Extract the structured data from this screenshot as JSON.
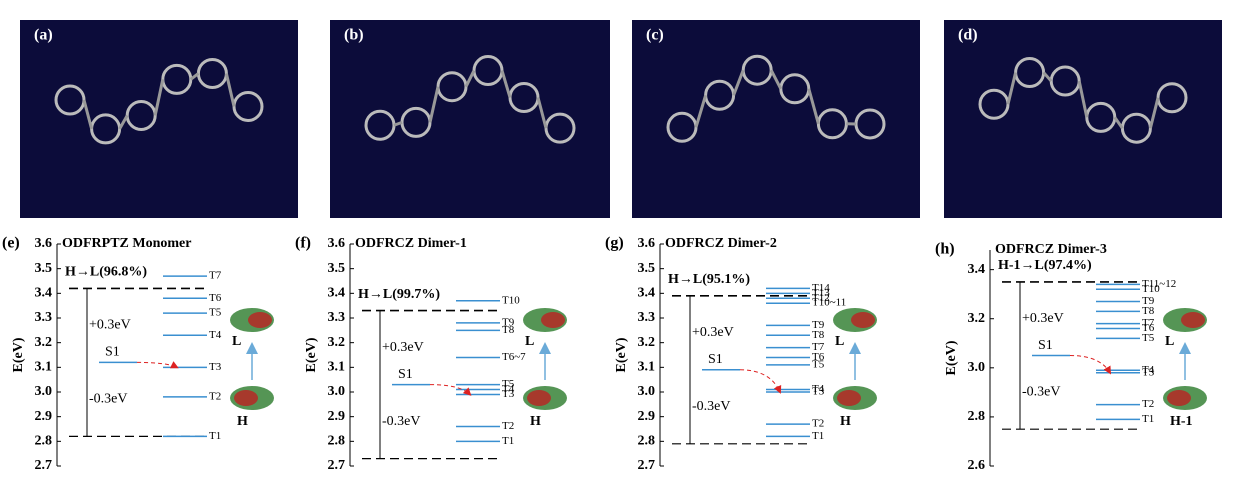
{
  "panels": [
    "(a)",
    "(b)",
    "(c)",
    "(d)"
  ],
  "chart_data": [
    {
      "type": "energy-level",
      "label": "(e)",
      "title": "ODFRPTZ Monomer",
      "ylabel": "E(eV)",
      "ylim": [
        2.7,
        3.6
      ],
      "yticks": [
        2.7,
        2.8,
        2.9,
        {
          "value": 3,
          "label": "3.0"
        },
        3.1,
        3.2,
        3.3,
        3.4,
        3.5,
        3.6
      ],
      "transition": "H→L(96.8%)",
      "plus": "+0.3eV",
      "minus": "-0.3eV",
      "upper": "L",
      "lower": "H",
      "s1_label": "S1",
      "s1": 3.12,
      "window": [
        3.42,
        2.82
      ],
      "levels": [
        {
          "label": "T7",
          "value": 3.47
        },
        {
          "label": "T6",
          "value": 3.38
        },
        {
          "label": "T5",
          "value": 3.32
        },
        {
          "label": "T4",
          "value": 3.23
        },
        {
          "label": "T3",
          "value": 3.1
        },
        {
          "label": "T2",
          "value": 2.98
        },
        {
          "label": "T1",
          "value": 2.82
        }
      ]
    },
    {
      "type": "energy-level",
      "label": "(f)",
      "title": "ODFRCZ Dimer-1",
      "ylabel": "E(eV)",
      "ylim": [
        2.7,
        3.6
      ],
      "yticks": [
        2.7,
        2.8,
        2.9,
        {
          "value": 3,
          "label": "3.0"
        },
        3.1,
        3.2,
        3.3,
        3.4,
        3.5,
        3.6
      ],
      "transition": "H→L(99.7%)",
      "plus": "+0.3eV",
      "minus": "-0.3eV",
      "upper": "L",
      "lower": "H",
      "s1_label": "S1",
      "s1": 3.03,
      "window": [
        3.33,
        2.73
      ],
      "levels": [
        {
          "label": "T10",
          "value": 3.37
        },
        {
          "label": "T9",
          "value": 3.28
        },
        {
          "label": "T8",
          "value": 3.25
        },
        {
          "label": "T6~7",
          "value": 3.14
        },
        {
          "label": "T5",
          "value": 3.03
        },
        {
          "label": "T4",
          "value": 3.01
        },
        {
          "label": "T3",
          "value": 2.99
        },
        {
          "label": "T2",
          "value": 2.86
        },
        {
          "label": "T1",
          "value": 2.8
        }
      ]
    },
    {
      "type": "energy-level",
      "label": "(g)",
      "title": "ODFRCZ Dimer-2",
      "ylabel": "E(eV)",
      "ylim": [
        2.7,
        3.6
      ],
      "yticks": [
        2.7,
        2.8,
        2.9,
        {
          "value": 3,
          "label": "3.0"
        },
        3.1,
        3.2,
        3.3,
        3.4,
        3.5,
        3.6
      ],
      "transition": "H→L(95.1%)",
      "plus": "+0.3eV",
      "minus": "-0.3eV",
      "upper": "L",
      "lower": "H",
      "s1_label": "S1",
      "s1": 3.09,
      "window": [
        3.39,
        2.79
      ],
      "levels": [
        {
          "label": "T14",
          "value": 3.42
        },
        {
          "label": "T13",
          "value": 3.4
        },
        {
          "label": "T12",
          "value": 3.38
        },
        {
          "label": "T10~11",
          "value": 3.36
        },
        {
          "label": "T9",
          "value": 3.27
        },
        {
          "label": "T8",
          "value": 3.23
        },
        {
          "label": "T7",
          "value": 3.18
        },
        {
          "label": "T6",
          "value": 3.14
        },
        {
          "label": "T5",
          "value": 3.11
        },
        {
          "label": "T4",
          "value": 3.01
        },
        {
          "label": "T3",
          "value": 3.0
        },
        {
          "label": "T2",
          "value": 2.87
        },
        {
          "label": "T1",
          "value": 2.82
        }
      ]
    },
    {
      "type": "energy-level",
      "label": "(h)",
      "title": "ODFRCZ Dimer-3",
      "ylabel": "E(eV)",
      "ylim": [
        2.6,
        3.48
      ],
      "yticks": [
        2.6,
        2.8,
        {
          "value": 3,
          "label": "3.0"
        },
        3.2,
        3.4
      ],
      "transition": "H-1→L(97.4%)",
      "plus": "+0.3eV",
      "minus": "-0.3eV",
      "upper": "L",
      "lower": "H-1",
      "s1_label": "S1",
      "s1": 3.05,
      "window": [
        3.35,
        2.75
      ],
      "levels": [
        {
          "label": "T11~12",
          "value": 3.34
        },
        {
          "label": "T10",
          "value": 3.32
        },
        {
          "label": "T9",
          "value": 3.27
        },
        {
          "label": "T8",
          "value": 3.23
        },
        {
          "label": "T7",
          "value": 3.18
        },
        {
          "label": "T6",
          "value": 3.16
        },
        {
          "label": "T5",
          "value": 3.12
        },
        {
          "label": "T4",
          "value": 2.99
        },
        {
          "label": "T3",
          "value": 2.98
        },
        {
          "label": "T2",
          "value": 2.85
        },
        {
          "label": "T1",
          "value": 2.79
        }
      ]
    }
  ]
}
